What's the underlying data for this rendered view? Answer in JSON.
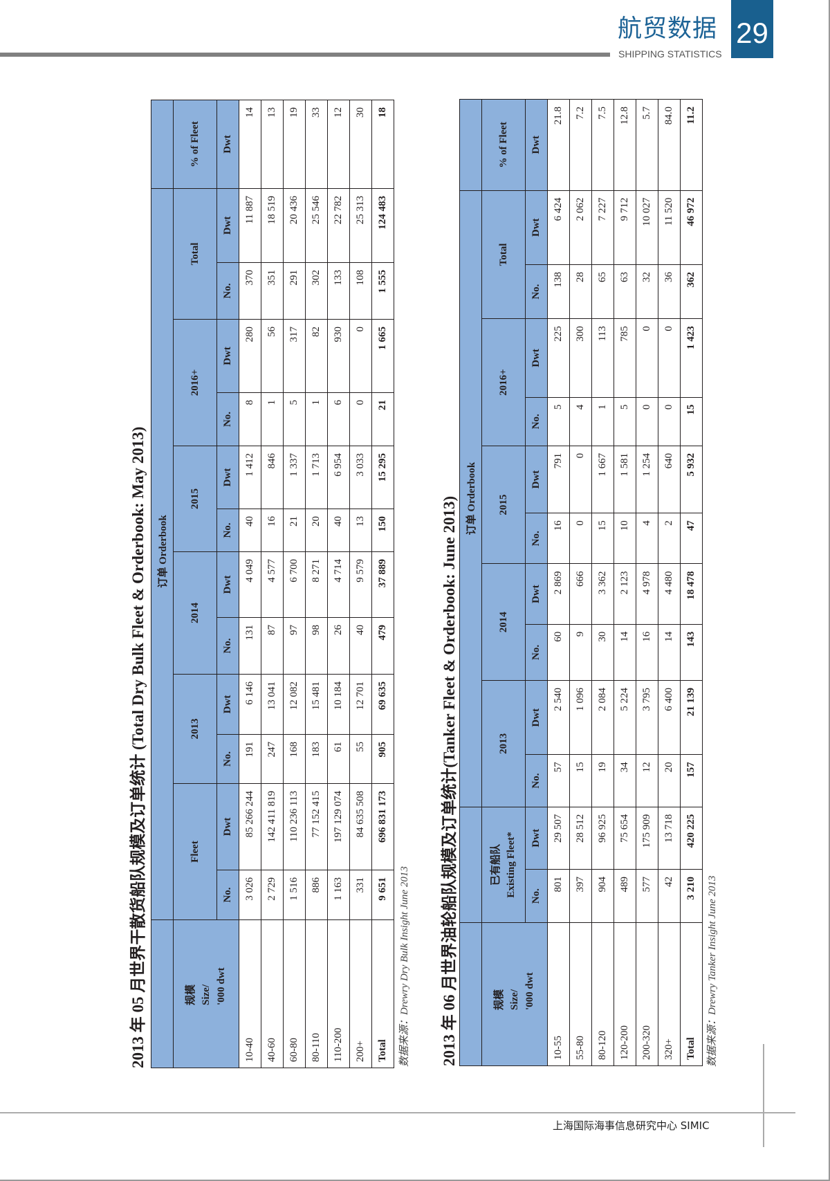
{
  "header": {
    "section_cn": "航贸数据",
    "section_en": "SHIPPING STATISTICS",
    "page_number": "29"
  },
  "colors": {
    "header_fill": "#8db1dc",
    "brand_blue": "#19608f"
  },
  "tables": [
    {
      "title": "2013 年 05 月世界干散货船队规模及订单统计 (Total Dry Bulk Fleet & Orderbook: May 2013)",
      "source": "数据来源：Drewry Dry Bulk Insight June 2013",
      "headers": {
        "size_cn": "规模",
        "size_en": "Size/",
        "size_unit": "'000 dwt",
        "fleet_cn": "",
        "fleet": "Fleet",
        "orderbook": "订单 Orderbook",
        "years": [
          "2013",
          "2014",
          "2015",
          "2016+"
        ],
        "total": "Total",
        "pct": "% of Fleet",
        "no": "No.",
        "dwt": "Dwt"
      },
      "rows": [
        [
          "10-40",
          "3 026",
          "85 266 244",
          "191",
          "6 146",
          "131",
          "4 049",
          "40",
          "1 412",
          "8",
          "280",
          "370",
          "11 887",
          "14"
        ],
        [
          "40-60",
          "2 729",
          "142 411 819",
          "247",
          "13 041",
          "87",
          "4 577",
          "16",
          "846",
          "1",
          "56",
          "351",
          "18 519",
          "13"
        ],
        [
          "60-80",
          "1 516",
          "110 236 113",
          "168",
          "12 082",
          "97",
          "6 700",
          "21",
          "1 337",
          "5",
          "317",
          "291",
          "20 436",
          "19"
        ],
        [
          "80-110",
          "886",
          "77 152 415",
          "183",
          "15 481",
          "98",
          "8 271",
          "20",
          "1 713",
          "1",
          "82",
          "302",
          "25 546",
          "33"
        ],
        [
          "110-200",
          "1 163",
          "197 129 074",
          "61",
          "10 184",
          "26",
          "4 714",
          "40",
          "6 954",
          "6",
          "930",
          "133",
          "22 782",
          "12"
        ],
        [
          "200+",
          "331",
          "84 635 508",
          "55",
          "12 701",
          "40",
          "9 579",
          "13",
          "3 033",
          "0",
          "0",
          "108",
          "25 313",
          "30"
        ]
      ],
      "total_row": [
        "Total",
        "9 651",
        "696 831 173",
        "905",
        "69 635",
        "479",
        "37 889",
        "150",
        "15 295",
        "21",
        "1 665",
        "1 555",
        "124 483",
        "18"
      ]
    },
    {
      "title": "2013 年 06 月世界油轮船队规模及订单统计(Tanker Fleet & Orderbook: June 2013)",
      "source": "数据来源：Drewry Tanker Insight June 2013",
      "headers": {
        "size_cn": "规模",
        "size_en": "Size/",
        "size_unit": "'000 dwt",
        "fleet_cn": "已有船队",
        "fleet": "Existing Fleet*",
        "orderbook": "订单 Orderbook",
        "years": [
          "2013",
          "2014",
          "2015",
          "2016+"
        ],
        "total": "Total",
        "pct": "% of Fleet",
        "no": "No.",
        "dwt": "Dwt"
      },
      "rows": [
        [
          "10-55",
          "801",
          "29 507",
          "57",
          "2 540",
          "60",
          "2 869",
          "16",
          "791",
          "5",
          "225",
          "138",
          "6 424",
          "21.8"
        ],
        [
          "55-80",
          "397",
          "28 512",
          "15",
          "1 096",
          "9",
          "666",
          "0",
          "0",
          "4",
          "300",
          "28",
          "2 062",
          "7.2"
        ],
        [
          "80-120",
          "904",
          "96 925",
          "19",
          "2 084",
          "30",
          "3 362",
          "15",
          "1 667",
          "1",
          "113",
          "65",
          "7 227",
          "7.5"
        ],
        [
          "120-200",
          "489",
          "75 654",
          "34",
          "5 224",
          "14",
          "2 123",
          "10",
          "1 581",
          "5",
          "785",
          "63",
          "9 712",
          "12.8"
        ],
        [
          "200-320",
          "577",
          "175 909",
          "12",
          "3 795",
          "16",
          "4 978",
          "4",
          "1 254",
          "0",
          "0",
          "32",
          "10 027",
          "5.7"
        ],
        [
          "320+",
          "42",
          "13 718",
          "20",
          "6 400",
          "14",
          "4 480",
          "2",
          "640",
          "0",
          "0",
          "36",
          "11 520",
          "84.0"
        ]
      ],
      "total_row": [
        "Total",
        "3 210",
        "420 225",
        "157",
        "21 139",
        "143",
        "18 478",
        "47",
        "5 932",
        "15",
        "1 423",
        "362",
        "46 972",
        "11.2"
      ]
    }
  ],
  "footer": {
    "org": "上海国际海事信息研究中心  SIMIC"
  }
}
